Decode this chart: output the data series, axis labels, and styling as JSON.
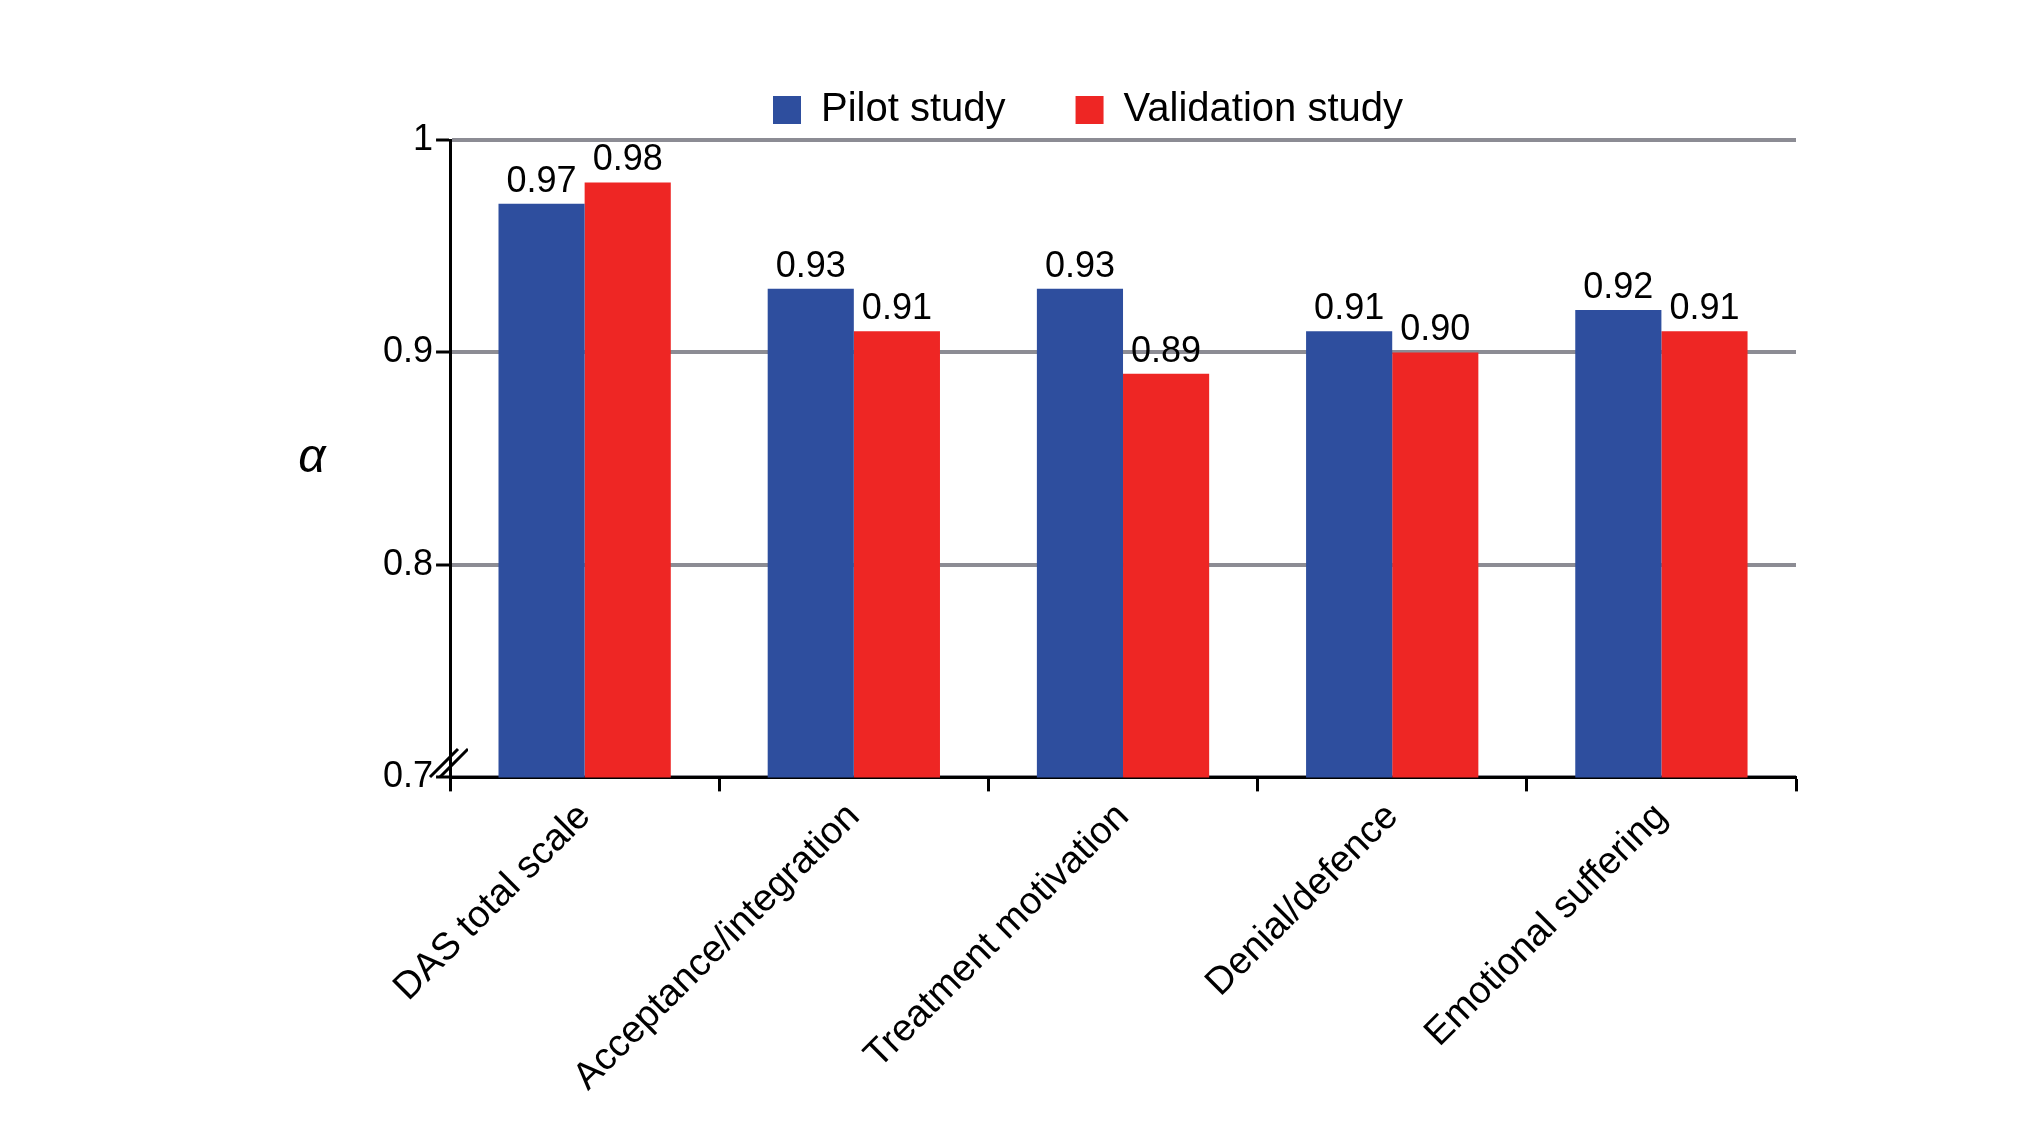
{
  "chart_data": {
    "type": "bar",
    "ylabel": "α",
    "categories": [
      "DAS total scale",
      "Acceptance/integration",
      "Treatment motivation",
      "Denial/defence",
      "Emotional suffering"
    ],
    "series": [
      {
        "name": "Pilot study",
        "color": "#2e4e9e",
        "values": [
          0.97,
          0.93,
          0.93,
          0.91,
          0.92
        ],
        "value_labels": [
          "0.97",
          "0.93",
          "0.93",
          "0.91",
          "0.92"
        ]
      },
      {
        "name": "Validation study",
        "color": "#ee2624",
        "values": [
          0.98,
          0.91,
          0.89,
          0.9,
          0.91
        ],
        "value_labels": [
          "0.98",
          "0.91",
          "0.89",
          "0.90",
          "0.91"
        ]
      }
    ],
    "ylim": [
      0.7,
      1
    ],
    "yticks": [
      0.7,
      0.8,
      0.9,
      1
    ],
    "grid": "y",
    "legend": "top"
  }
}
